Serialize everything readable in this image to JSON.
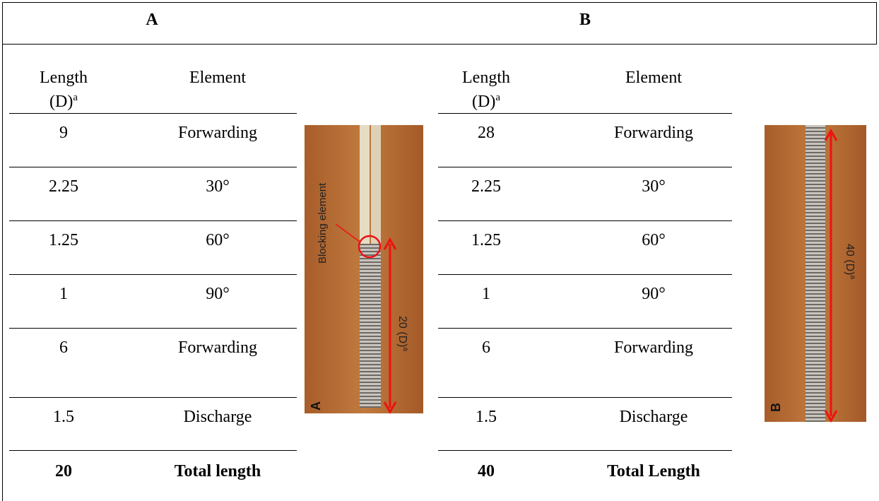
{
  "header": {
    "a": "A",
    "b": "B"
  },
  "table_a": {
    "columns": [
      {
        "text": "Length (D)",
        "sup": "a"
      },
      "Element"
    ],
    "rows": [
      [
        "9",
        "Forwarding"
      ],
      [
        "2.25",
        "30°"
      ],
      [
        "1.25",
        "60°"
      ],
      [
        "1",
        "90°"
      ],
      [
        "6",
        "Forwarding"
      ],
      [
        "1.5",
        "Discharge"
      ]
    ],
    "total": [
      "20",
      "Total length"
    ]
  },
  "table_b": {
    "columns": [
      {
        "text": "Length (D)",
        "sup": "a"
      },
      "Element"
    ],
    "rows": [
      [
        "28",
        "Forwarding"
      ],
      [
        "2.25",
        "30°"
      ],
      [
        "1.25",
        "60°"
      ],
      [
        "1",
        "90°"
      ],
      [
        "6",
        "Forwarding"
      ],
      [
        "1.5",
        "Discharge"
      ]
    ],
    "total": [
      "40",
      "Total Length"
    ]
  },
  "images": {
    "a": {
      "annotation": "Blocking element",
      "dimension": "20 (D)",
      "dimension_sup": "a",
      "label": "A"
    },
    "b": {
      "dimension": "40 (D)",
      "dimension_sup": "a",
      "label": "B"
    }
  }
}
